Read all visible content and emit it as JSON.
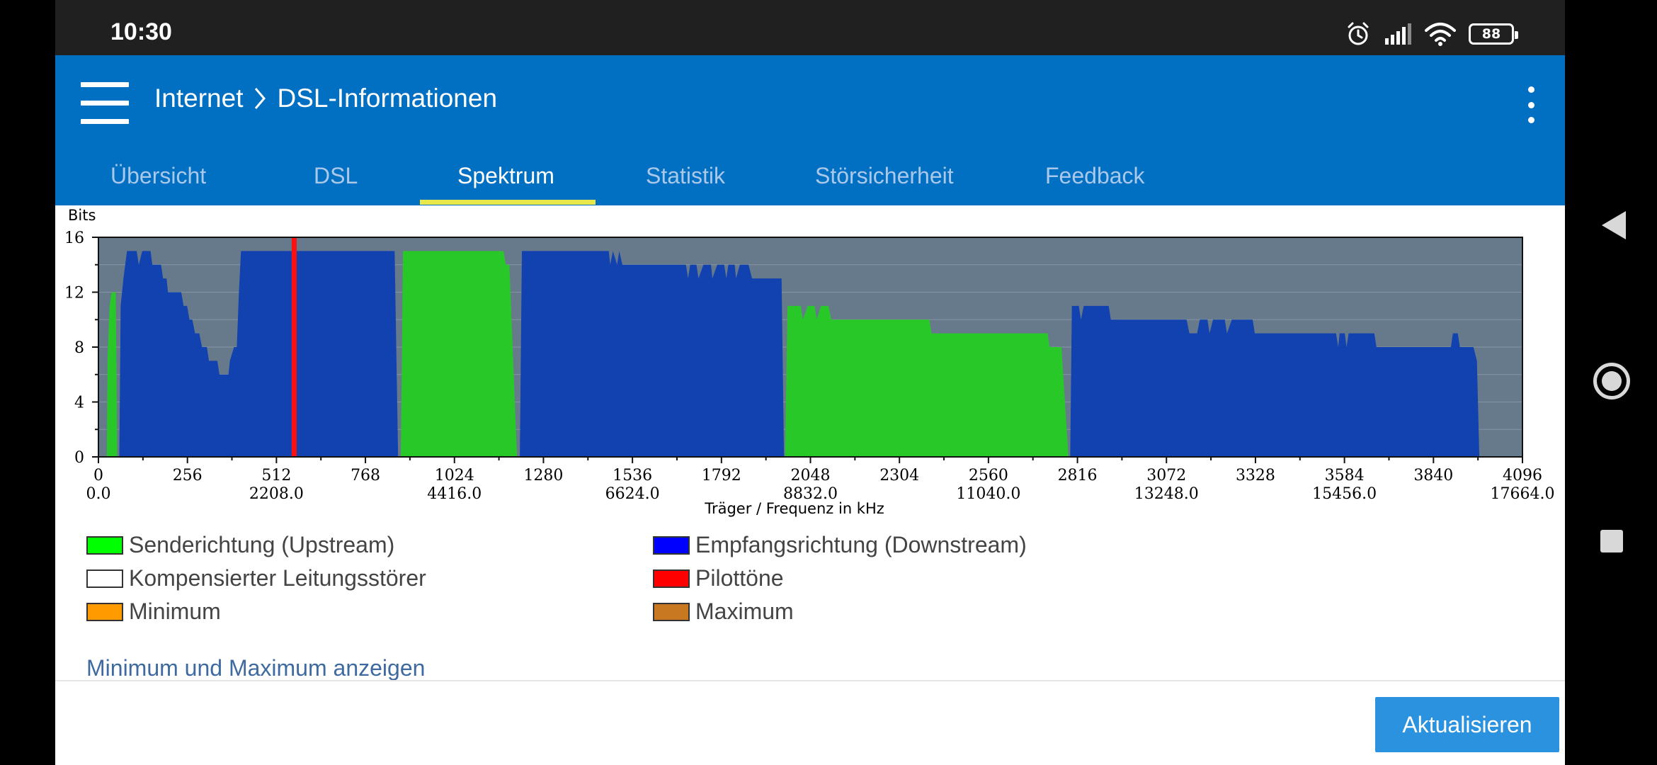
{
  "status_bar": {
    "time": "10:30",
    "battery": "88",
    "icons": [
      "alarm-icon",
      "signal-icon",
      "wifi-icon",
      "battery-icon"
    ]
  },
  "app_bar": {
    "breadcrumb": [
      "Internet",
      "DSL-Informationen"
    ],
    "menu_icon": "hamburger-icon",
    "more_icon": "more-vert-icon"
  },
  "tabs": [
    {
      "label": "Übersicht",
      "active": false
    },
    {
      "label": "DSL",
      "active": false
    },
    {
      "label": "Spektrum",
      "active": true
    },
    {
      "label": "Statistik",
      "active": false
    },
    {
      "label": "Störsicherheit",
      "active": false
    },
    {
      "label": "Feedback",
      "active": false
    }
  ],
  "colors": {
    "appbar": "#0270c2",
    "upstream": "#29c829",
    "downstream": "#1242b0",
    "pilot": "#ff1010",
    "plot_bg": "#677a8c",
    "legend_upstream": "#00ff00",
    "legend_downstream": "#0000ff",
    "legend_compensated": "#ffffff",
    "legend_pilot": "#ff0000",
    "legend_minimum": "#ff9a00",
    "legend_maximum": "#c87820"
  },
  "chart_data": {
    "type": "area",
    "ylabel": "Bits",
    "xlabel": "Träger / Frequenz in kHz",
    "xlim": [
      0,
      4096
    ],
    "ylim": [
      0,
      16
    ],
    "yticks": [
      0,
      4,
      8,
      12,
      16
    ],
    "xticks": [
      0,
      256,
      512,
      768,
      1024,
      1280,
      1536,
      1792,
      2048,
      2304,
      2560,
      2816,
      3072,
      3328,
      3584,
      3840,
      4096
    ],
    "xtick_freqs": [
      "0.0",
      "2208.0",
      "4416.0",
      "6624.0",
      "8832.0",
      "11040.0",
      "13248.0",
      "15456.0",
      "17664.0"
    ],
    "freq_tick_carriers": [
      0,
      512,
      1024,
      1536,
      2048,
      2560,
      3072,
      3584,
      4096
    ],
    "grid": true,
    "series": [
      {
        "name": "Sendericht. Upstream band 1",
        "kind": "upstream",
        "points": [
          [
            24,
            0
          ],
          [
            26,
            7
          ],
          [
            32,
            11
          ],
          [
            38,
            12
          ],
          [
            50,
            12
          ],
          [
            54,
            0
          ]
        ]
      },
      {
        "name": "Empfangsrichtung Downstream band 1",
        "kind": "downstream",
        "points": [
          [
            60,
            0
          ],
          [
            64,
            11
          ],
          [
            72,
            13
          ],
          [
            82,
            15
          ],
          [
            110,
            15
          ],
          [
            116,
            14
          ],
          [
            126,
            15
          ],
          [
            150,
            15
          ],
          [
            155,
            14
          ],
          [
            180,
            14
          ],
          [
            186,
            13
          ],
          [
            196,
            13
          ],
          [
            200,
            12
          ],
          [
            238,
            12
          ],
          [
            245,
            11
          ],
          [
            255,
            11
          ],
          [
            262,
            10
          ],
          [
            270,
            10
          ],
          [
            278,
            9
          ],
          [
            290,
            9
          ],
          [
            298,
            8
          ],
          [
            312,
            8
          ],
          [
            318,
            7
          ],
          [
            342,
            7
          ],
          [
            348,
            6
          ],
          [
            374,
            6
          ],
          [
            378,
            7
          ],
          [
            390,
            8
          ],
          [
            398,
            8
          ],
          [
            404,
            12
          ],
          [
            410,
            15
          ],
          [
            852,
            15
          ],
          [
            862,
            0
          ]
        ]
      },
      {
        "name": "Sendericht. Upstream band 2",
        "kind": "upstream",
        "points": [
          [
            870,
            0
          ],
          [
            876,
            15
          ],
          [
            1165,
            15
          ],
          [
            1172,
            14
          ],
          [
            1182,
            14
          ],
          [
            1204,
            0
          ]
        ]
      },
      {
        "name": "Empfangsrichtung Downstream band 2",
        "kind": "downstream",
        "points": [
          [
            1212,
            0
          ],
          [
            1218,
            15
          ],
          [
            1468,
            15
          ],
          [
            1472,
            14
          ],
          [
            1480,
            15
          ],
          [
            1492,
            14
          ],
          [
            1498,
            15
          ],
          [
            1507,
            14
          ],
          [
            1690,
            14
          ],
          [
            1696,
            13
          ],
          [
            1702,
            14
          ],
          [
            1720,
            14
          ],
          [
            1726,
            13
          ],
          [
            1740,
            14
          ],
          [
            1762,
            14
          ],
          [
            1766,
            13
          ],
          [
            1780,
            14
          ],
          [
            1800,
            14
          ],
          [
            1806,
            13
          ],
          [
            1812,
            14
          ],
          [
            1830,
            14
          ],
          [
            1834,
            13
          ],
          [
            1845,
            14
          ],
          [
            1870,
            14
          ],
          [
            1880,
            13
          ],
          [
            1965,
            13
          ],
          [
            1972,
            0
          ]
        ]
      },
      {
        "name": "Sendericht. Upstream band 3",
        "kind": "upstream",
        "points": [
          [
            1975,
            0
          ],
          [
            1982,
            11
          ],
          [
            2020,
            11
          ],
          [
            2026,
            10
          ],
          [
            2040,
            11
          ],
          [
            2060,
            11
          ],
          [
            2066,
            10
          ],
          [
            2078,
            11
          ],
          [
            2100,
            11
          ],
          [
            2108,
            10
          ],
          [
            2390,
            10
          ],
          [
            2396,
            9
          ],
          [
            2730,
            9
          ],
          [
            2736,
            8
          ],
          [
            2770,
            8
          ],
          [
            2790,
            0
          ]
        ]
      },
      {
        "name": "Empfangsrichtung Downstream band 3",
        "kind": "downstream",
        "points": [
          [
            2795,
            0
          ],
          [
            2800,
            11
          ],
          [
            2820,
            11
          ],
          [
            2826,
            10
          ],
          [
            2834,
            11
          ],
          [
            2906,
            11
          ],
          [
            2912,
            10
          ],
          [
            3130,
            10
          ],
          [
            3138,
            9
          ],
          [
            3160,
            9
          ],
          [
            3168,
            10
          ],
          [
            3190,
            10
          ],
          [
            3196,
            9
          ],
          [
            3206,
            10
          ],
          [
            3240,
            10
          ],
          [
            3246,
            9
          ],
          [
            3260,
            10
          ],
          [
            3320,
            10
          ],
          [
            3326,
            9
          ],
          [
            3560,
            9
          ],
          [
            3566,
            8
          ],
          [
            3570,
            9
          ],
          [
            3585,
            9
          ],
          [
            3590,
            8
          ],
          [
            3596,
            9
          ],
          [
            3670,
            9
          ],
          [
            3676,
            8
          ],
          [
            3890,
            8
          ],
          [
            3896,
            9
          ],
          [
            3910,
            9
          ],
          [
            3916,
            8
          ],
          [
            3955,
            8
          ],
          [
            3965,
            7
          ],
          [
            3972,
            0
          ]
        ]
      }
    ],
    "pilot_tones": [
      563
    ]
  },
  "legend": {
    "items": [
      {
        "label": "Senderichtung (Upstream)",
        "color_key": "legend_upstream"
      },
      {
        "label": "Empfangsrichtung (Downstream)",
        "color_key": "legend_downstream"
      },
      {
        "label": "Kompensierter Leitungsstörer",
        "color_key": "legend_compensated"
      },
      {
        "label": "Pilottöne",
        "color_key": "legend_pilot"
      },
      {
        "label": "Minimum",
        "color_key": "legend_minimum"
      },
      {
        "label": "Maximum",
        "color_key": "legend_maximum"
      }
    ]
  },
  "actions": {
    "toggle_minmax": "Minimum und Maximum anzeigen",
    "refresh": "Aktualisieren"
  },
  "nav_bar": {
    "icons": [
      "back-icon",
      "home-icon",
      "recents-icon"
    ]
  }
}
